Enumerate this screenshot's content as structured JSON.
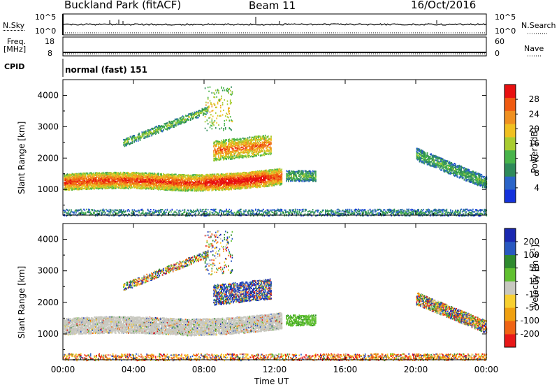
{
  "header": {
    "site": "Buckland Park (fitACF)",
    "beam": "Beam 11",
    "date": "16/Oct/2016"
  },
  "top_panels": {
    "nsky_label": "N.Sky",
    "nsky_ticks": [
      "10^5",
      "10^0"
    ],
    "nsearch_label": "N.Search",
    "nsearch_ticks": [
      "10^5",
      "10^0"
    ],
    "freq_label": "Freq.",
    "freq_unit": "[MHz]",
    "freq_ticks": [
      "18",
      "8"
    ],
    "nave_label": "Nave",
    "nave_ticks": [
      "60",
      "0"
    ],
    "cpid_label": "CPID",
    "cpid_text": "normal (fast) 151"
  },
  "colors": {
    "power": [
      "#1432dc",
      "#2a64c8",
      "#2e8a5a",
      "#48b44a",
      "#a8cc30",
      "#f0c020",
      "#f09020",
      "#f05a10",
      "#e81010"
    ],
    "velocity": [
      "#e81818",
      "#f06414",
      "#f0a010",
      "#f8d030",
      "#c8c8c0",
      "#60c030",
      "#2e8a2e",
      "#2858c0",
      "#1a28b0"
    ]
  },
  "chart_data": [
    {
      "type": "heatmap",
      "title": "",
      "xlabel": "Time UT",
      "ylabel": "Slant Range [km]",
      "xlim": [
        0,
        24
      ],
      "ylim": [
        180,
        4500
      ],
      "x_ticks": [
        "00:00",
        "04:00",
        "08:00",
        "12:00",
        "16:00",
        "20:00",
        "00:00"
      ],
      "y_ticks": [
        "1000",
        "2000",
        "3000",
        "4000"
      ],
      "colorbar_label": "Power [dB]",
      "colorbar_ticks": [
        "4",
        "8",
        "12",
        "16",
        "20",
        "24",
        "28"
      ],
      "colorbar_range": [
        0,
        32
      ]
    },
    {
      "type": "heatmap",
      "title": "",
      "xlabel": "Time UT",
      "ylabel": "Slant Range [km]",
      "xlim": [
        0,
        24
      ],
      "ylim": [
        180,
        4500
      ],
      "x_ticks": [
        "00:00",
        "04:00",
        "08:00",
        "12:00",
        "16:00",
        "20:00",
        "00:00"
      ],
      "y_ticks": [
        "1000",
        "2000",
        "3000",
        "4000"
      ],
      "colorbar_label": "Velocity [m s",
      "colorbar_label_sup": "-1",
      "colorbar_label_end": "]",
      "colorbar_ticks": [
        "-200",
        "-100",
        "-50",
        "-15",
        "15",
        "50",
        "100",
        "200"
      ]
    }
  ]
}
